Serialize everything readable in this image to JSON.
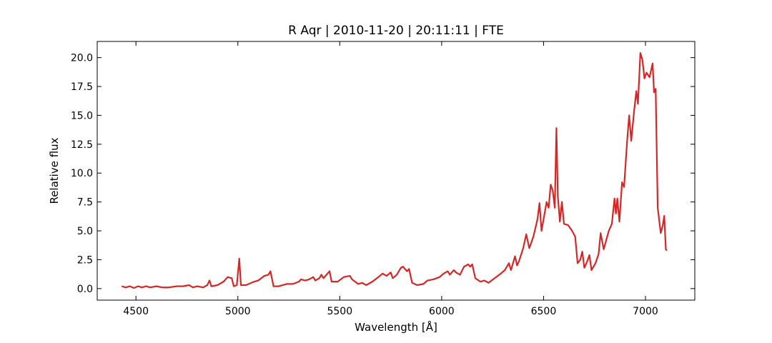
{
  "chart_data": {
    "type": "line",
    "title": "R Aqr | 2010-11-20 | 20:11:11 | FTE",
    "xlabel": "Wavelength [Å]",
    "ylabel": "Relative flux",
    "color": "#d62728",
    "x": [
      4430,
      4450,
      4470,
      4490,
      4510,
      4530,
      4550,
      4570,
      4600,
      4630,
      4660,
      4700,
      4730,
      4760,
      4780,
      4800,
      4830,
      4850,
      4861,
      4870,
      4900,
      4930,
      4950,
      4970,
      4980,
      4995,
      5007,
      5015,
      5040,
      5080,
      5100,
      5130,
      5150,
      5160,
      5175,
      5200,
      5240,
      5270,
      5300,
      5310,
      5330,
      5350,
      5370,
      5380,
      5400,
      5410,
      5420,
      5440,
      5450,
      5460,
      5490,
      5520,
      5550,
      5560,
      5590,
      5610,
      5630,
      5660,
      5690,
      5710,
      5730,
      5750,
      5760,
      5780,
      5800,
      5810,
      5830,
      5840,
      5855,
      5880,
      5910,
      5930,
      5960,
      5990,
      6010,
      6030,
      6040,
      6060,
      6070,
      6090,
      6110,
      6130,
      6140,
      6150,
      6165,
      6190,
      6210,
      6230,
      6260,
      6290,
      6310,
      6330,
      6340,
      6360,
      6370,
      6380,
      6400,
      6415,
      6430,
      6450,
      6470,
      6480,
      6490,
      6500,
      6515,
      6525,
      6535,
      6545,
      6555,
      6563,
      6570,
      6580,
      6590,
      6600,
      6620,
      6640,
      6655,
      6667,
      6680,
      6690,
      6700,
      6715,
      6725,
      6735,
      6755,
      6770,
      6780,
      6795,
      6820,
      6835,
      6848,
      6855,
      6862,
      6872,
      6885,
      6895,
      6910,
      6920,
      6930,
      6945,
      6955,
      6963,
      6975,
      6985,
      6995,
      7005,
      7020,
      7035,
      7042,
      7050,
      7060,
      7075,
      7085,
      7092,
      7100,
      7105
    ],
    "values": [
      0.2,
      0.1,
      0.2,
      0.05,
      0.2,
      0.1,
      0.2,
      0.1,
      0.2,
      0.1,
      0.1,
      0.2,
      0.2,
      0.3,
      0.1,
      0.2,
      0.1,
      0.3,
      0.7,
      0.2,
      0.3,
      0.6,
      1.0,
      0.9,
      0.2,
      0.3,
      2.6,
      0.3,
      0.3,
      0.6,
      0.7,
      1.1,
      1.2,
      1.5,
      0.2,
      0.2,
      0.4,
      0.4,
      0.6,
      0.8,
      0.7,
      0.8,
      1.0,
      0.7,
      0.9,
      1.2,
      0.9,
      1.3,
      1.5,
      0.6,
      0.6,
      1.0,
      1.1,
      0.8,
      0.4,
      0.5,
      0.3,
      0.6,
      1.0,
      1.3,
      1.1,
      1.4,
      0.9,
      1.2,
      1.8,
      1.9,
      1.5,
      1.7,
      0.5,
      0.3,
      0.4,
      0.7,
      0.8,
      1.0,
      1.3,
      1.5,
      1.2,
      1.6,
      1.4,
      1.2,
      1.9,
      2.1,
      1.9,
      2.1,
      0.9,
      0.6,
      0.7,
      0.5,
      0.9,
      1.3,
      1.6,
      2.2,
      1.6,
      2.8,
      2.0,
      2.4,
      3.5,
      4.7,
      3.5,
      4.5,
      6.0,
      7.4,
      5.0,
      6.0,
      7.5,
      7.0,
      9.0,
      8.5,
      7.0,
      13.9,
      8.0,
      5.8,
      7.5,
      5.6,
      5.5,
      5.0,
      4.5,
      2.2,
      2.5,
      3.2,
      1.8,
      2.4,
      2.9,
      1.6,
      2.2,
      3.0,
      4.8,
      3.4,
      5.0,
      5.6,
      7.8,
      6.5,
      7.8,
      5.8,
      9.2,
      8.8,
      12.8,
      15.0,
      12.8,
      15.5,
      17.1,
      16.0,
      20.4,
      19.8,
      18.2,
      18.7,
      18.3,
      19.5,
      17.0,
      17.3,
      7.0,
      4.8,
      5.5,
      6.3,
      3.4,
      3.3
    ],
    "xlim": [
      4310,
      7242
    ],
    "ylim": [
      -1.0,
      21.4
    ],
    "xticks": [
      4500,
      5000,
      5500,
      6000,
      6500,
      7000
    ],
    "yticks": [
      {
        "value": 0,
        "label": "0.0"
      },
      2.5,
      {
        "value": 5,
        "label": "5.0"
      },
      7.5,
      {
        "value": 10,
        "label": "10.0"
      },
      12.5,
      {
        "value": 15,
        "label": "15.0"
      },
      17.5,
      {
        "value": 20,
        "label": "20.0"
      }
    ]
  }
}
